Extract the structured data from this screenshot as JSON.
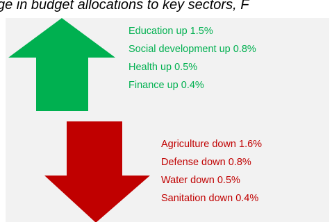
{
  "title": "ge in budget allocations to key sectors, F",
  "colors": {
    "increase": "#00b050",
    "decrease": "#c00000",
    "panel_background": "#f2f2f2"
  },
  "increases": {
    "icon": "up-arrow",
    "items": [
      "Education up 1.5%",
      "Social development up 0.8%",
      "Health up 0.5%",
      "Finance up 0.4%"
    ]
  },
  "decreases": {
    "icon": "down-arrow",
    "items": [
      "Agriculture down 1.6%",
      "Defense down 0.8%",
      "Water down 0.5%",
      "Sanitation down 0.4%"
    ]
  }
}
